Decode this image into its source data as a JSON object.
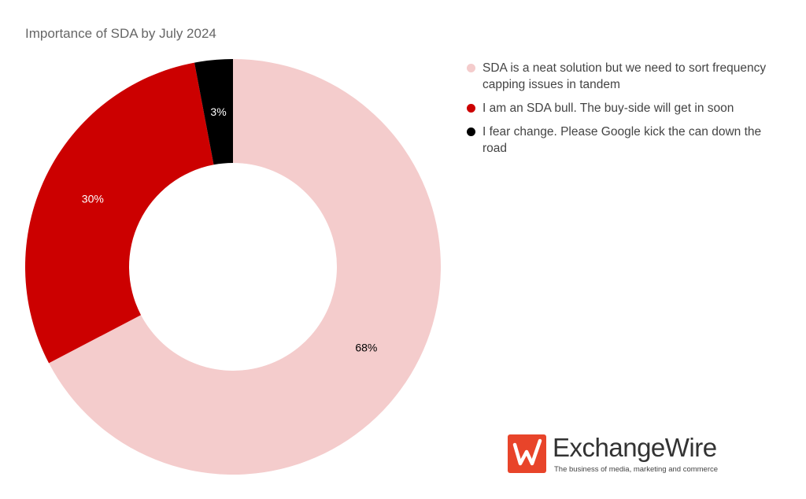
{
  "chart_data": {
    "type": "pie",
    "title": "Importance of SDA by July 2024",
    "donut": true,
    "slices": [
      {
        "label": "SDA is a neat solution but we need to sort frequency capping issues in tandem",
        "value": 68,
        "display": "68%",
        "color": "#f4cccc",
        "label_color": "#000000"
      },
      {
        "label": "I am an SDA bull. The buy-side will get in soon",
        "value": 30,
        "display": "30%",
        "color": "#cc0000",
        "label_color": "#ffffff"
      },
      {
        "label": "I fear change. Please Google kick the can down the road",
        "value": 3,
        "display": "3%",
        "color": "#000000",
        "label_color": "#ffffff"
      }
    ],
    "legend_position": "right"
  },
  "logo": {
    "name": "ExchangeWire",
    "tagline": "The business of media, marketing and commerce",
    "icon": "exchangewire-logo-icon"
  }
}
